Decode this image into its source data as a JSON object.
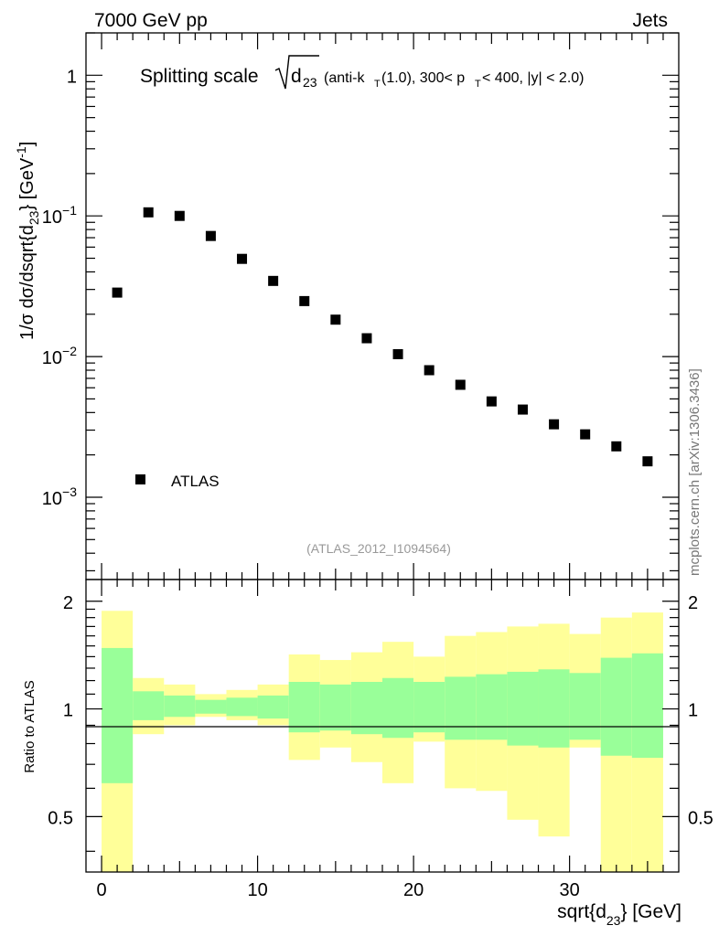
{
  "header": {
    "energy_label": "7000 GeV pp",
    "category_label": "Jets",
    "side_label": "mcplots.cern.ch [arXiv:1306.3436]",
    "analysis_label": "(ATLAS_2012_I1094564)"
  },
  "title": {
    "prefix": "Splitting scale",
    "sqrt_symbol": "d",
    "sqrt_sub": "23",
    "detail_a": "(anti-k",
    "detail_a_sub": "T",
    "detail_b": "(1.0), 300< p",
    "detail_b_sub": "T",
    "detail_c": " < 400, |y| < 2.0)"
  },
  "main_axis": {
    "ylabel_pre": "1/σ dσ/dsqrt{d",
    "ylabel_sub": "23",
    "ylabel_mid": "} [GeV",
    "ylabel_sup": "-1",
    "ylabel_post": "]",
    "tick_labels": [
      {
        "value": 1,
        "base": "1",
        "exp": ""
      },
      {
        "value": 0.1,
        "base": "10",
        "exp": "−1"
      },
      {
        "value": 0.01,
        "base": "10",
        "exp": "−2"
      },
      {
        "value": 0.001,
        "base": "10",
        "exp": "−3"
      }
    ]
  },
  "ratio_axis": {
    "ylabel": "Ratio to ATLAS",
    "tick_labels": [
      "2",
      "1",
      "0.5"
    ],
    "tick_values": [
      2,
      1,
      0.5
    ]
  },
  "x_axis": {
    "label_pre": "sqrt{d",
    "label_sub": "23",
    "label_post": "} [GeV]",
    "tick_labels": [
      "0",
      "10",
      "20",
      "30"
    ],
    "tick_values": [
      0,
      10,
      20,
      30
    ]
  },
  "legend": {
    "entry": "ATLAS"
  },
  "colors": {
    "band_outer": "#ffff99",
    "band_inner": "#99ff99",
    "marker": "#000000"
  },
  "chart_data": [
    {
      "type": "scatter",
      "title": "Splitting scale sqrt(d23) (anti-kT(1.0), 300< pT < 400, |y| < 2.0)",
      "xlabel": "sqrt{d23} [GeV]",
      "ylabel": "1/σ dσ/dsqrt{d23} [GeV^-1]",
      "xlim": [
        -1,
        37
      ],
      "ylim": [
        0.00026,
        2.0
      ],
      "yscale": "log",
      "series": [
        {
          "name": "ATLAS",
          "x": [
            1,
            3,
            5,
            7,
            9,
            11,
            13,
            15,
            17,
            19,
            21,
            23,
            25,
            27,
            29,
            31,
            33,
            35
          ],
          "values": [
            0.0285,
            0.106,
            0.1,
            0.072,
            0.0495,
            0.0345,
            0.0248,
            0.0183,
            0.0135,
            0.0104,
            0.008,
            0.0063,
            0.0048,
            0.0042,
            0.0033,
            0.0028,
            0.0023,
            0.0018
          ]
        }
      ]
    },
    {
      "type": "area",
      "title": "Ratio to ATLAS",
      "xlabel": "sqrt{d23} [GeV]",
      "ylabel": "Ratio to ATLAS",
      "xlim": [
        -1,
        37
      ],
      "ylim": [
        0.35,
        2.3
      ],
      "yscale": "log",
      "bin_edges": [
        0,
        2,
        4,
        6,
        8,
        10,
        12,
        14,
        16,
        18,
        20,
        22,
        24,
        26,
        28,
        30,
        32,
        34,
        36
      ],
      "series": [
        {
          "name": "stat uncertainty",
          "lower": [
            0.62,
            0.93,
            0.95,
            0.97,
            0.955,
            0.94,
            0.86,
            0.87,
            0.85,
            0.83,
            0.86,
            0.82,
            0.82,
            0.79,
            0.78,
            0.82,
            0.74,
            0.73
          ],
          "upper": [
            1.48,
            1.12,
            1.09,
            1.06,
            1.075,
            1.09,
            1.19,
            1.17,
            1.19,
            1.22,
            1.19,
            1.23,
            1.25,
            1.27,
            1.29,
            1.26,
            1.39,
            1.43
          ]
        },
        {
          "name": "total uncertainty",
          "lower": [
            0.35,
            0.85,
            0.9,
            0.95,
            0.93,
            0.9,
            0.72,
            0.78,
            0.71,
            0.62,
            0.81,
            0.6,
            0.59,
            0.49,
            0.44,
            0.78,
            0.35,
            0.35
          ],
          "upper": [
            1.88,
            1.22,
            1.17,
            1.1,
            1.13,
            1.17,
            1.42,
            1.37,
            1.44,
            1.54,
            1.4,
            1.6,
            1.64,
            1.7,
            1.73,
            1.62,
            1.8,
            1.86
          ]
        }
      ]
    }
  ]
}
